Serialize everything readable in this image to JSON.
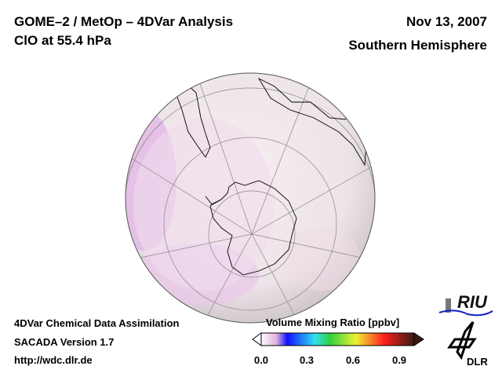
{
  "header": {
    "title_line1": "GOME–2 / MetOp – 4DVar Analysis",
    "title_line2": "ClO at 55.4 hPa",
    "date": "Nov 13, 2007",
    "hemisphere": "Southern Hemisphere"
  },
  "footer": {
    "line1": "4DVar Chemical Data Assimilation",
    "line2": "SACADA Version 1.7",
    "line3": "http://wdc.dlr.de"
  },
  "colorbar": {
    "title": "Volume Mixing Ratio [ppbv]",
    "ticks": [
      "0.0",
      "0.3",
      "0.6",
      "0.9"
    ],
    "range": [
      0,
      1
    ],
    "colors": [
      "#ffffff",
      "#e8c8e8",
      "#1010ff",
      "#30e0f0",
      "#30d040",
      "#f0f030",
      "#ff2020",
      "#3a1a10"
    ]
  },
  "logos": {
    "riu": "RIU",
    "dlr": "DLR"
  }
}
